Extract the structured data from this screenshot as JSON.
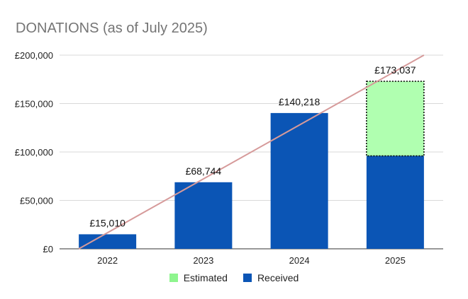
{
  "chart_data": {
    "type": "bar",
    "title": "DONATIONS (as of July 2025)",
    "categories": [
      "2022",
      "2023",
      "2024",
      "2025"
    ],
    "series": [
      {
        "name": "Received",
        "values": [
          15010,
          68744,
          140218,
          96000
        ],
        "color": "#0b55b5"
      },
      {
        "name": "Estimated",
        "values": [
          0,
          0,
          0,
          77037
        ],
        "color": "#b0ffb0",
        "legend_color": "#8ef58e"
      }
    ],
    "totals": [
      15010,
      68744,
      140218,
      173037
    ],
    "data_labels": [
      "£15,010",
      "£68,744",
      "£140,218",
      "£173,037"
    ],
    "y_tick_values": [
      0,
      50000,
      100000,
      150000,
      200000
    ],
    "y_tick_labels": [
      "£0",
      "£50,000",
      "£100,000",
      "£150,000",
      "£200,000"
    ],
    "ylim": [
      0,
      200000
    ],
    "trendline": {
      "color": "#d69a9a",
      "from": {
        "x": "2022",
        "y": 0
      },
      "to": {
        "x": "2025",
        "y": 200000
      }
    },
    "estimated_border": "dotted",
    "grid": true,
    "legend_position": "bottom"
  }
}
